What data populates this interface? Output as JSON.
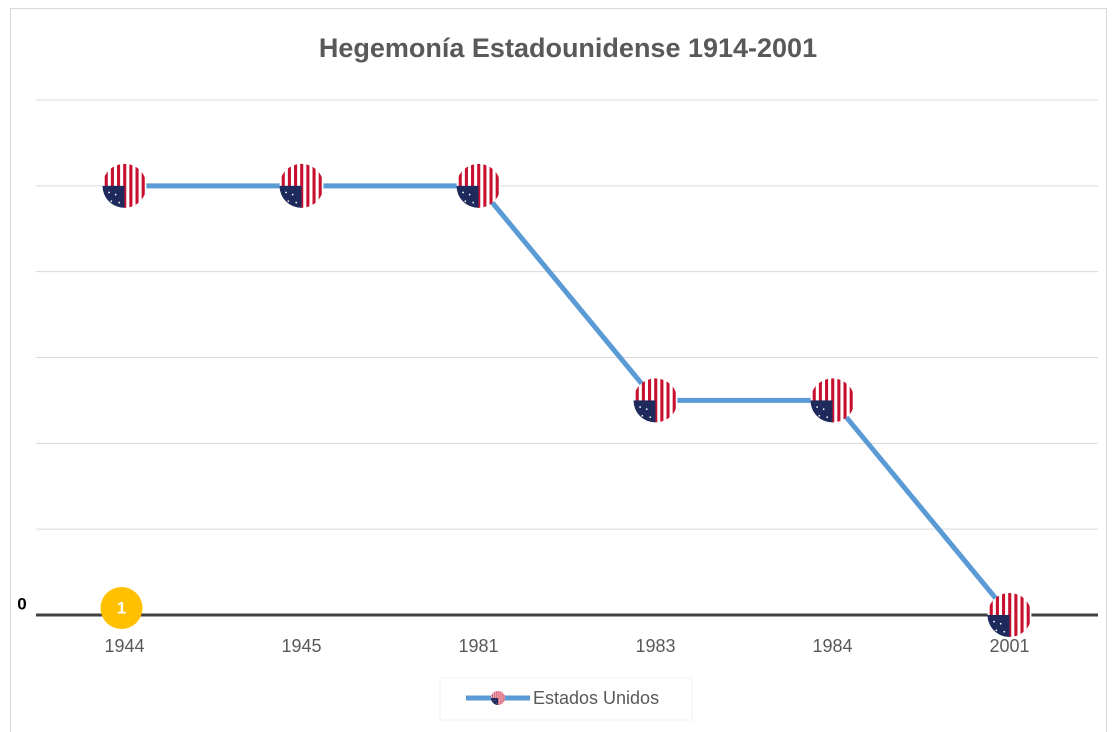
{
  "chart_data": {
    "type": "line",
    "title": "Hegemonía Estadounidense 1914-2001",
    "categories": [
      "1944",
      "1945",
      "1981",
      "1983",
      "1984",
      "2001"
    ],
    "series": [
      {
        "name": "Estados Unidos",
        "color": "#5b9bd5",
        "values": [
          5,
          5,
          5,
          2.5,
          2.5,
          0
        ]
      }
    ],
    "ylim": [
      0,
      6
    ],
    "yticks": [
      0
    ],
    "grid_lines": [
      1,
      2,
      3,
      4,
      5,
      6
    ],
    "annotations": [
      {
        "text": "1",
        "x": "1944",
        "color": "#ffc000"
      }
    ],
    "legend": "bottom"
  }
}
